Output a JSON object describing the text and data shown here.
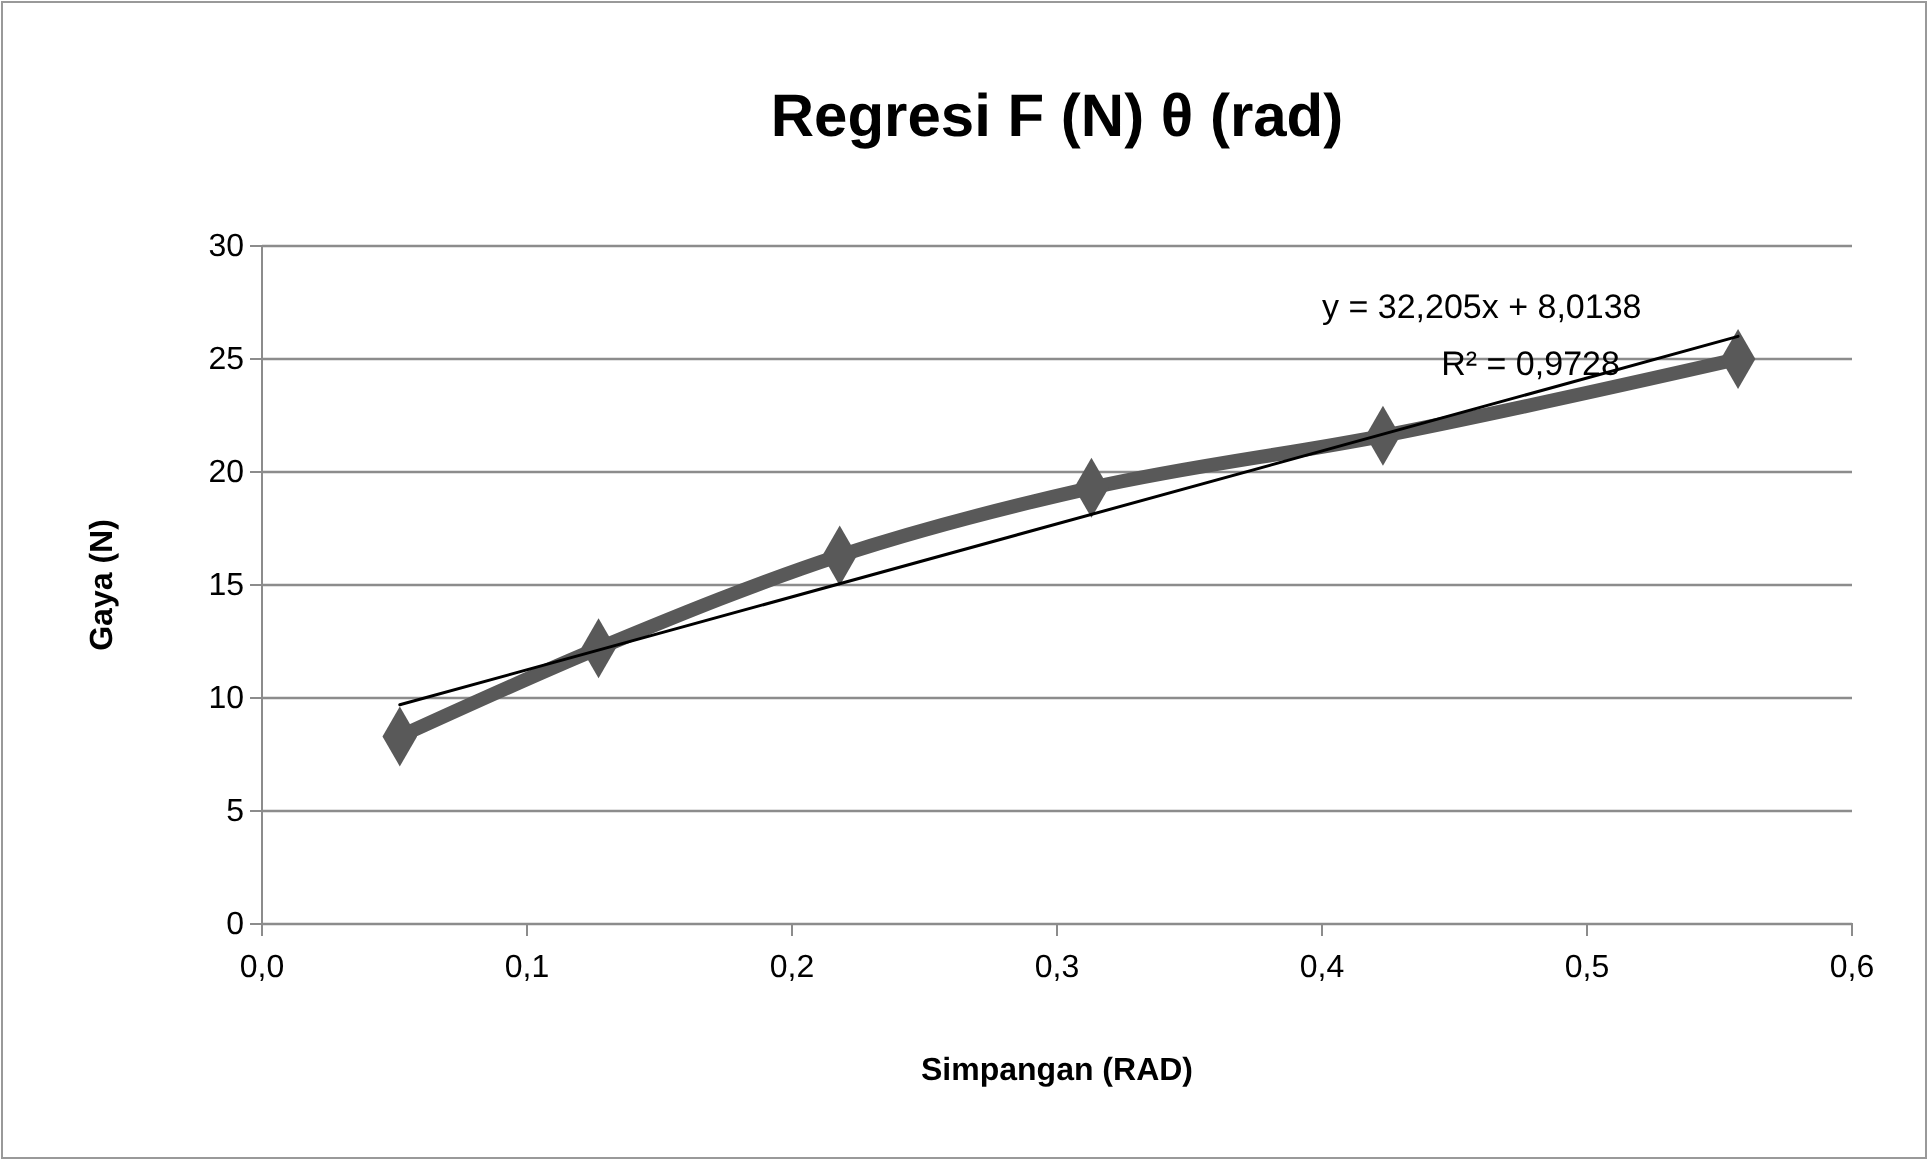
{
  "chart_data": {
    "type": "line",
    "title": "Regresi F (N) θ (rad)",
    "xlabel": "Simpangan (RAD)",
    "ylabel": "Gaya (N)",
    "xlim": [
      0,
      0.6
    ],
    "xticks": [
      {
        "value": 0,
        "label": "0,0"
      },
      {
        "value": 0.1,
        "label": "0,1"
      },
      {
        "value": 0.2,
        "label": "0,2"
      },
      {
        "value": 0.3,
        "label": "0,3"
      },
      {
        "value": 0.4,
        "label": "0,4"
      },
      {
        "value": 0.5,
        "label": "0,5"
      },
      {
        "value": 0.6,
        "label": "0,6"
      }
    ],
    "ylim": [
      0,
      30
    ],
    "yticks": [
      0,
      5,
      10,
      15,
      20,
      25,
      30
    ],
    "grid": "y",
    "series": [
      {
        "color": "#595959",
        "marker": "diamond",
        "x": [
          0.052,
          0.127,
          0.218,
          0.313,
          0.423,
          0.557
        ],
        "values": [
          8.3,
          12.2,
          16.3,
          19.3,
          21.6,
          25.0
        ]
      },
      {
        "color": "#000000",
        "marker": "none",
        "x": [
          0.052,
          0.557
        ],
        "values": [
          9.7,
          26.0
        ]
      }
    ],
    "annotations": [
      "y = 32,205x + 8,0138",
      "R² = 0,9728"
    ]
  }
}
